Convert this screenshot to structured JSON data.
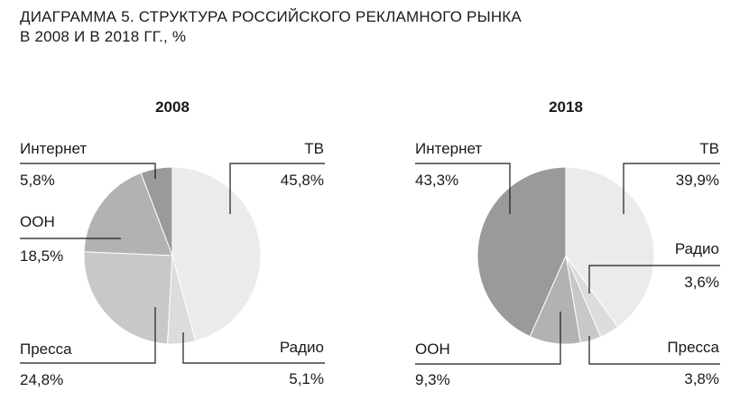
{
  "title_line1": "ДИАГРАММА 5. СТРУКТУРА РОССИЙСКОГО РЕКЛАМНОГО РЫНКА",
  "title_line2": "В 2008 И В 2018 ГГ., %",
  "chart_data": [
    {
      "type": "pie",
      "title": "2008",
      "slices": [
        {
          "label": "ТВ",
          "value": 45.8,
          "value_text": "45,8%",
          "color": "#ebebeb"
        },
        {
          "label": "Радио",
          "value": 5.1,
          "value_text": "5,1%",
          "color": "#dcdcdc"
        },
        {
          "label": "Пресса",
          "value": 24.8,
          "value_text": "24,8%",
          "color": "#c8c8c8"
        },
        {
          "label": "ООН",
          "value": 18.5,
          "value_text": "18,5%",
          "color": "#b2b2b2"
        },
        {
          "label": "Интернет",
          "value": 5.8,
          "value_text": "5,8%",
          "color": "#9a9a9a"
        }
      ]
    },
    {
      "type": "pie",
      "title": "2018",
      "slices": [
        {
          "label": "ТВ",
          "value": 39.9,
          "value_text": "39,9%",
          "color": "#ebebeb"
        },
        {
          "label": "Радио",
          "value": 3.6,
          "value_text": "3,6%",
          "color": "#dcdcdc"
        },
        {
          "label": "Пресса",
          "value": 3.8,
          "value_text": "3,8%",
          "color": "#c8c8c8"
        },
        {
          "label": "ООН",
          "value": 9.3,
          "value_text": "9,3%",
          "color": "#b2b2b2"
        },
        {
          "label": "Интернет",
          "value": 43.3,
          "value_text": "43,3%",
          "color": "#9a9a9a"
        }
      ]
    }
  ]
}
